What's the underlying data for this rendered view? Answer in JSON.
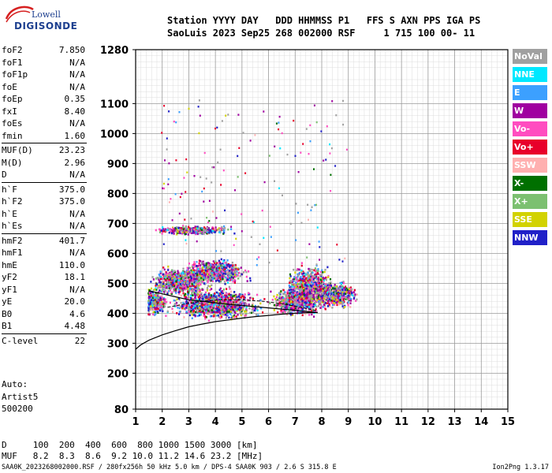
{
  "logo": {
    "line1": "Lowell",
    "line2": "DIGISONDE"
  },
  "header": {
    "line1": "Station YYYY DAY   DDD HHMMSS P1   FFS S AXN PPS IGA PS",
    "line2": "SaoLuis 2023 Sep25 268 002000 RSF     1 715 100 00- 11"
  },
  "params": [
    [
      {
        "label": "foF2",
        "value": "7.850"
      },
      {
        "label": "foF1",
        "value": "N/A"
      },
      {
        "label": "foF1p",
        "value": "N/A"
      },
      {
        "label": "foE",
        "value": "N/A"
      },
      {
        "label": "foEp",
        "value": "0.35"
      },
      {
        "label": "fxI",
        "value": "8.40"
      },
      {
        "label": "foEs",
        "value": "N/A"
      },
      {
        "label": "fmin",
        "value": "1.60"
      }
    ],
    [
      {
        "label": "MUF(D)",
        "value": "23.23"
      },
      {
        "label": "M(D)",
        "value": "2.96"
      },
      {
        "label": "D",
        "value": "N/A"
      }
    ],
    [
      {
        "label": "h`F",
        "value": "375.0"
      },
      {
        "label": "h`F2",
        "value": "375.0"
      },
      {
        "label": "h`E",
        "value": "N/A"
      },
      {
        "label": "h`Es",
        "value": "N/A"
      }
    ],
    [
      {
        "label": "hmF2",
        "value": "401.7"
      },
      {
        "label": "hmF1",
        "value": "N/A"
      },
      {
        "label": "hmE",
        "value": "110.0"
      },
      {
        "label": "yF2",
        "value": "18.1"
      },
      {
        "label": "yF1",
        "value": "N/A"
      },
      {
        "label": "yE",
        "value": "20.0"
      },
      {
        "label": "B0",
        "value": "4.6"
      },
      {
        "label": "B1",
        "value": "4.48"
      }
    ],
    [
      {
        "label": "C-level",
        "value": "22"
      }
    ]
  ],
  "auto": {
    "line1": "Auto:",
    "line2": "Artist5",
    "line3": "500200"
  },
  "legend": [
    {
      "name": "NoVal",
      "color": "#a0a0a0",
      "text": "#ffffff"
    },
    {
      "name": "NNE",
      "color": "#00e8ff",
      "text": "#ffffff"
    },
    {
      "name": "E",
      "color": "#3ca0ff",
      "text": "#ffffff"
    },
    {
      "name": "W",
      "color": "#a000a0",
      "text": "#ffffff"
    },
    {
      "name": "Vo-",
      "color": "#ff4dc0",
      "text": "#ffffff"
    },
    {
      "name": "Vo+",
      "color": "#e8002a",
      "text": "#ffffff"
    },
    {
      "name": "SSW",
      "color": "#ffb0b0",
      "text": "#ffffff"
    },
    {
      "name": "X-",
      "color": "#007000",
      "text": "#ffffff"
    },
    {
      "name": "X+",
      "color": "#7cc070",
      "text": "#ffffff"
    },
    {
      "name": "SSE",
      "color": "#d2d200",
      "text": "#ffffff"
    },
    {
      "name": "NNW",
      "color": "#2020c8",
      "text": "#ffffff"
    }
  ],
  "dmuf": {
    "line1": "D     100  200  400  600  800 1000 1500 3000 [km]",
    "line2": "MUF   8.2  8.3  8.6  9.2 10.0 11.2 14.6 23.2 [MHz]"
  },
  "footer": "SAA0K_2023268002000.RSF / 280fx256h 50 kHz 5.0 km / DPS-4 SAA0K 903 / 2.6 S 315.8 E",
  "version": "Ion2Png 1.3.17",
  "chart_data": {
    "type": "scatter",
    "xlim": [
      1,
      15
    ],
    "ylim": [
      80,
      1280
    ],
    "x_ticks": [
      1,
      2,
      3,
      4,
      5,
      6,
      7,
      8,
      9,
      10,
      11,
      12,
      13,
      14,
      15
    ],
    "y_ticks": [
      80,
      200,
      300,
      400,
      500,
      600,
      700,
      800,
      900,
      1000,
      1100,
      1280
    ],
    "grid": true,
    "dense_trace": [
      [
        1.5,
        0.55,
        440,
        40
      ],
      [
        4.0,
        1.2,
        435,
        45
      ],
      [
        7.0,
        0.7,
        440,
        40
      ],
      [
        8.5,
        0.7,
        465,
        35
      ],
      [
        2.6,
        0.8,
        510,
        40
      ],
      [
        4.0,
        0.9,
        540,
        35
      ],
      [
        3.2,
        1.2,
        680,
        12
      ],
      [
        7.5,
        0.6,
        490,
        60
      ]
    ],
    "profile_curve": {
      "x": [
        1.0,
        1.2,
        1.5,
        2.0,
        2.5,
        3.0,
        3.5,
        4.0,
        4.5,
        5.0,
        5.5,
        6.0,
        6.5,
        7.0,
        7.5,
        7.85
      ],
      "y": [
        280,
        295,
        310,
        328,
        342,
        355,
        364,
        372,
        378,
        384,
        389,
        393,
        397,
        400,
        402,
        403
      ]
    },
    "ordinary_trace": {
      "x": [
        1.5,
        2.0,
        2.5,
        3.0,
        3.5,
        4.0,
        4.5,
        5.0,
        5.5,
        6.0,
        6.5,
        7.0,
        7.5,
        7.85
      ],
      "y": [
        475,
        465,
        455,
        445,
        440,
        435,
        430,
        426,
        422,
        418,
        414,
        410,
        405,
        402
      ]
    },
    "extra_trace": {
      "x": [
        2.2,
        2.8,
        3.5,
        4.2,
        5.0,
        5.8,
        6.5,
        7.2,
        7.85
      ],
      "y": [
        420,
        430,
        440,
        445,
        445,
        440,
        432,
        420,
        408
      ]
    }
  }
}
